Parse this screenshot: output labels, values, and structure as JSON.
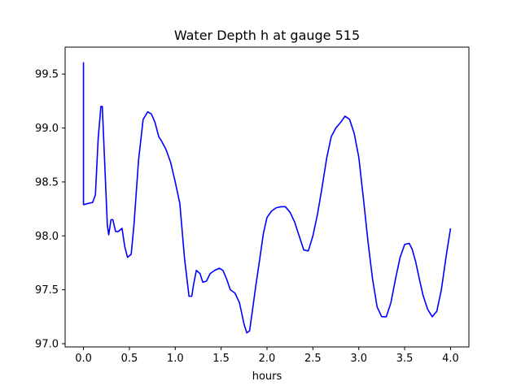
{
  "chart_data": {
    "type": "line",
    "title": "Water Depth h at gauge 515",
    "xlabel": "hours",
    "ylabel": "",
    "xlim": [
      -0.2,
      4.2
    ],
    "ylim": [
      96.97,
      99.75
    ],
    "xticks": [
      0.0,
      0.5,
      1.0,
      1.5,
      2.0,
      2.5,
      3.0,
      3.5,
      4.0
    ],
    "xtick_labels": [
      "0.0",
      "0.5",
      "1.0",
      "1.5",
      "2.0",
      "2.5",
      "3.0",
      "3.5",
      "4.0"
    ],
    "yticks": [
      97.0,
      97.5,
      98.0,
      98.5,
      99.0,
      99.5
    ],
    "ytick_labels": [
      "97.0",
      "97.5",
      "98.0",
      "98.5",
      "99.0",
      "99.5"
    ],
    "grid": false,
    "series": [
      {
        "color": "#0000ff",
        "x": [
          0.0,
          0.0,
          0.005,
          0.05,
          0.1,
          0.13,
          0.16,
          0.19,
          0.205,
          0.23,
          0.26,
          0.275,
          0.3,
          0.32,
          0.35,
          0.38,
          0.42,
          0.45,
          0.48,
          0.52,
          0.55,
          0.6,
          0.65,
          0.7,
          0.74,
          0.78,
          0.82,
          0.85,
          0.9,
          0.95,
          1.0,
          1.05,
          1.1,
          1.15,
          1.18,
          1.2,
          1.23,
          1.27,
          1.3,
          1.34,
          1.38,
          1.43,
          1.48,
          1.52,
          1.56,
          1.6,
          1.65,
          1.7,
          1.75,
          1.78,
          1.81,
          1.84,
          1.88,
          1.92,
          1.96,
          2.0,
          2.05,
          2.1,
          2.15,
          2.2,
          2.25,
          2.3,
          2.35,
          2.4,
          2.45,
          2.5,
          2.55,
          2.6,
          2.65,
          2.7,
          2.75,
          2.8,
          2.85,
          2.9,
          2.95,
          3.0,
          3.05,
          3.1,
          3.15,
          3.2,
          3.25,
          3.3,
          3.35,
          3.4,
          3.45,
          3.5,
          3.55,
          3.58,
          3.62,
          3.66,
          3.7,
          3.75,
          3.8,
          3.85,
          3.9,
          3.95,
          4.0
        ],
        "y": [
          99.61,
          98.29,
          98.29,
          98.3,
          98.31,
          98.38,
          98.9,
          99.2,
          99.2,
          98.7,
          98.1,
          98.01,
          98.15,
          98.15,
          98.04,
          98.04,
          98.07,
          97.9,
          97.8,
          97.83,
          98.1,
          98.7,
          99.08,
          99.15,
          99.13,
          99.05,
          98.92,
          98.88,
          98.8,
          98.68,
          98.5,
          98.3,
          97.8,
          97.44,
          97.44,
          97.55,
          97.68,
          97.65,
          97.57,
          97.58,
          97.65,
          97.68,
          97.7,
          97.68,
          97.6,
          97.5,
          97.47,
          97.38,
          97.18,
          97.1,
          97.12,
          97.3,
          97.55,
          97.78,
          98.02,
          98.17,
          98.23,
          98.26,
          98.27,
          98.27,
          98.22,
          98.13,
          98.0,
          97.87,
          97.86,
          98.0,
          98.2,
          98.45,
          98.72,
          98.92,
          99.0,
          99.05,
          99.11,
          99.08,
          98.95,
          98.73,
          98.35,
          97.95,
          97.6,
          97.34,
          97.25,
          97.25,
          97.38,
          97.6,
          97.8,
          97.92,
          97.93,
          97.88,
          97.76,
          97.6,
          97.45,
          97.32,
          97.25,
          97.3,
          97.5,
          97.8,
          98.07
        ]
      }
    ]
  }
}
